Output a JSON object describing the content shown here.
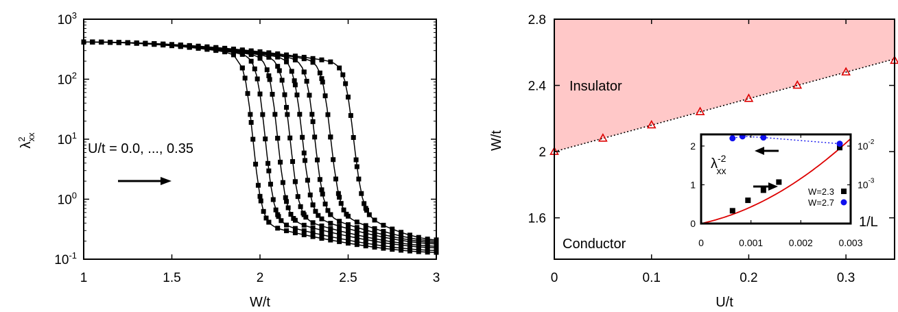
{
  "chart_data": [
    {
      "type": "line",
      "xlabel": "W/t",
      "ylabel_base": "λ",
      "ylabel_sup": "2",
      "ylabel_sub": "xx",
      "scale_y": "log",
      "xlim": [
        1,
        3
      ],
      "ylim": [
        0.1,
        1000
      ],
      "x_ticks": [
        {
          "v": 1,
          "label": "1"
        },
        {
          "v": 1.5,
          "label": "1.5"
        },
        {
          "v": 2,
          "label": "2"
        },
        {
          "v": 2.5,
          "label": "2.5"
        },
        {
          "v": 3,
          "label": "3"
        }
      ],
      "y_ticks": [
        {
          "v": 0.1,
          "exp": "-1"
        },
        {
          "v": 1,
          "exp": "0"
        },
        {
          "v": 10,
          "exp": "1"
        },
        {
          "v": 100,
          "exp": "2"
        },
        {
          "v": 1000,
          "exp": "3"
        }
      ],
      "y_tick_base": "10",
      "annotation": "U/t = 0.0, ..., 0.35",
      "marker": "square",
      "series_params": [
        {
          "U": 0.0,
          "wc": 1.96,
          "hi": 0.22,
          "lo": 0.13
        },
        {
          "U": 0.05,
          "wc": 2.03,
          "hi": 0.3,
          "lo": 0.14
        },
        {
          "U": 0.1,
          "wc": 2.1,
          "hi": 0.4,
          "lo": 0.155
        },
        {
          "U": 0.15,
          "wc": 2.17,
          "hi": 0.55,
          "lo": 0.165
        },
        {
          "U": 0.2,
          "wc": 2.24,
          "hi": 0.75,
          "lo": 0.18
        },
        {
          "U": 0.25,
          "wc": 2.31,
          "hi": 1.0,
          "lo": 0.19
        },
        {
          "U": 0.3,
          "wc": 2.4,
          "hi": 1.5,
          "lo": 0.2
        },
        {
          "U": 0.35,
          "wc": 2.53,
          "hi": 2.3,
          "lo": 0.21
        }
      ]
    },
    {
      "type": "scatter",
      "xlabel": "U/t",
      "ylabel": "W/t",
      "xlim": [
        0,
        0.35
      ],
      "ylim": [
        1.35,
        2.8
      ],
      "x_ticks": [
        {
          "v": 0,
          "label": "0"
        },
        {
          "v": 0.1,
          "label": "0.1"
        },
        {
          "v": 0.2,
          "label": "0.2"
        },
        {
          "v": 0.3,
          "label": "0.3"
        }
      ],
      "y_ticks": [
        {
          "v": 1.6,
          "label": "1.6"
        },
        {
          "v": 2,
          "label": "2"
        },
        {
          "v": 2.4,
          "label": "2.4"
        },
        {
          "v": 2.8,
          "label": "2.8"
        }
      ],
      "region_labels": {
        "upper": "Insulator",
        "lower": "Conductor"
      },
      "fill_color": "#ffc8c8",
      "points_color": "#dd0000",
      "points": {
        "x": [
          0,
          0.05,
          0.1,
          0.15,
          0.2,
          0.25,
          0.3,
          0.35
        ],
        "y": [
          2.0,
          2.08,
          2.16,
          2.24,
          2.32,
          2.4,
          2.48,
          2.55
        ]
      },
      "fit_line": {
        "x": [
          0,
          0.35
        ],
        "y": [
          2.0,
          2.56
        ]
      }
    },
    {
      "type": "scatter",
      "name": "inset",
      "xlabel": "1/L",
      "ylabel_base": "λ",
      "ylabel_sup": "-2",
      "ylabel_sub": "xx",
      "xlim": [
        0,
        0.003
      ],
      "ylim_left": [
        0,
        2.3
      ],
      "ylim_right_log": [
        0.0001,
        0.02
      ],
      "x_ticks": [
        {
          "v": 0,
          "label": "0"
        },
        {
          "v": 0.001,
          "label": "0.001"
        },
        {
          "v": 0.002,
          "label": "0.002"
        },
        {
          "v": 0.003,
          "label": "0.003"
        }
      ],
      "y_ticks_left": [
        {
          "v": 0,
          "label": "0"
        },
        {
          "v": 1,
          "label": "1"
        },
        {
          "v": 2,
          "label": "2"
        }
      ],
      "y_ticks_right": [
        {
          "v": 0.001,
          "exp": "-3"
        },
        {
          "v": 0.01,
          "exp": "-2"
        }
      ],
      "y_tick_base": "10",
      "series": [
        {
          "name": "W=2.3",
          "color": "#000000",
          "marker": "square",
          "x": [
            0.00063,
            0.00094,
            0.00125,
            0.00156,
            0.00278
          ],
          "y": [
            0.33,
            0.6,
            0.86,
            1.07,
            1.96
          ]
        },
        {
          "name": "W=2.7",
          "color": "#1010ee",
          "marker": "circle",
          "x": [
            0.00063,
            0.00083,
            0.00125,
            0.00278
          ],
          "y": [
            2.2,
            2.25,
            2.22,
            2.06
          ]
        }
      ],
      "fit_curve": {
        "color": "#dd0000",
        "form": "quadratic",
        "a": 0,
        "b": 280,
        "c": 150000
      }
    }
  ]
}
